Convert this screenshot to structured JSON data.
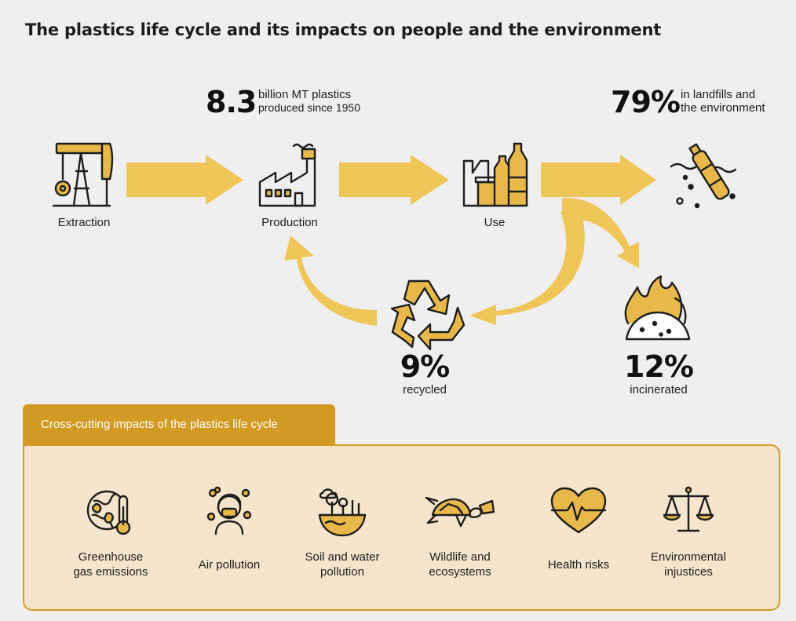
{
  "title": "The plastics life cycle and its impacts on people and the environment",
  "colors": {
    "accent": "#d29a22",
    "arrow": "#f1c658",
    "panel": "#f4e5cc",
    "background": "#efeff0"
  },
  "stages": {
    "extraction": {
      "label": "Extraction",
      "icon": "oil-pump-icon"
    },
    "production": {
      "label": "Production",
      "icon": "factory-icon"
    },
    "use": {
      "label": "Use",
      "icon": "packaging-icon"
    },
    "environment": {
      "icon": "bottle-in-water-icon"
    },
    "recycling": {
      "icon": "recycle-icon"
    },
    "incineration": {
      "icon": "burning-waste-icon"
    }
  },
  "stats": {
    "produced": {
      "value": "8.3",
      "line1": "billion MT plastics",
      "line2": "produced since 1950"
    },
    "landfill": {
      "value": "79%",
      "line1": "in landfills and",
      "line2": "the environment"
    },
    "recycled": {
      "value": "9%",
      "label": "recycled"
    },
    "incinerated": {
      "value": "12%",
      "label": "incinerated"
    }
  },
  "impacts": {
    "heading": "Cross-cutting impacts of the plastics life cycle",
    "items": [
      {
        "label": "Greenhouse\ngas emissions",
        "icon": "globe-thermometer-icon"
      },
      {
        "label": "Air pollution",
        "icon": "person-mask-icon"
      },
      {
        "label": "Soil and water\npollution",
        "icon": "polluted-land-icon"
      },
      {
        "label": "Wildlife and\necosystems",
        "icon": "turtle-cup-icon"
      },
      {
        "label": "Health risks",
        "icon": "heart-pulse-icon"
      },
      {
        "label": "Environmental\ninjustices",
        "icon": "scales-icon"
      }
    ]
  }
}
